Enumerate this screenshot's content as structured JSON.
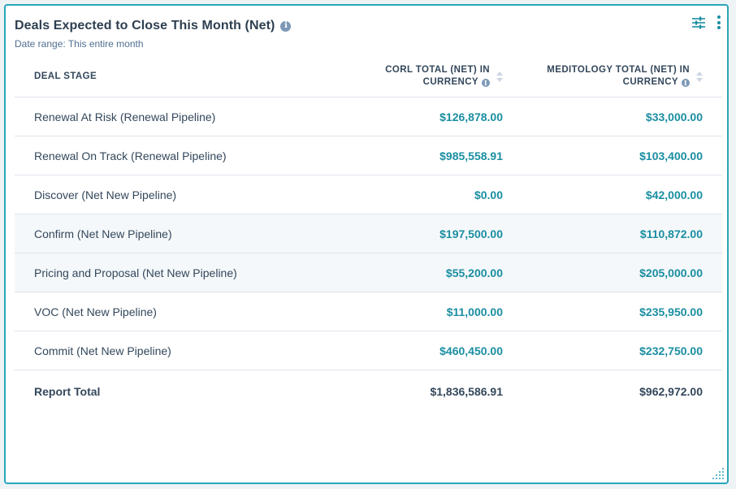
{
  "card": {
    "title": "Deals Expected to Close This Month (Net)",
    "subtitle": "Date range: This entire month"
  },
  "icons": {
    "info": "info-icon",
    "filter": "sliders-icon",
    "more": "vertical-ellipsis-icon",
    "resize": "resize-handle-icon"
  },
  "table": {
    "headers": {
      "stage": "DEAL STAGE",
      "corl_line1": "CORL TOTAL (NET) IN",
      "corl_line2": "CURRENCY",
      "medi_line1": "MEDITOLOGY TOTAL (NET) IN",
      "medi_line2": "CURRENCY"
    },
    "rows": [
      {
        "stage": "Renewal At Risk (Renewal Pipeline)",
        "corl": "$126,878.00",
        "medi": "$33,000.00"
      },
      {
        "stage": "Renewal On Track (Renewal Pipeline)",
        "corl": "$985,558.91",
        "medi": "$103,400.00"
      },
      {
        "stage": "Discover (Net New Pipeline)",
        "corl": "$0.00",
        "medi": "$42,000.00"
      },
      {
        "stage": "Confirm (Net New Pipeline)",
        "corl": "$197,500.00",
        "medi": "$110,872.00"
      },
      {
        "stage": "Pricing and Proposal (Net New Pipeline)",
        "corl": "$55,200.00",
        "medi": "$205,000.00"
      },
      {
        "stage": "VOC (Net New Pipeline)",
        "corl": "$11,000.00",
        "medi": "$235,950.00"
      },
      {
        "stage": "Commit (Net New Pipeline)",
        "corl": "$460,450.00",
        "medi": "$232,750.00"
      }
    ],
    "total": {
      "stage": "Report Total",
      "corl": "$1,836,586.91",
      "medi": "$962,972.00"
    }
  },
  "colors": {
    "accent": "#1a8ea1",
    "border": "#2aa6b8",
    "text": "#33475b"
  }
}
